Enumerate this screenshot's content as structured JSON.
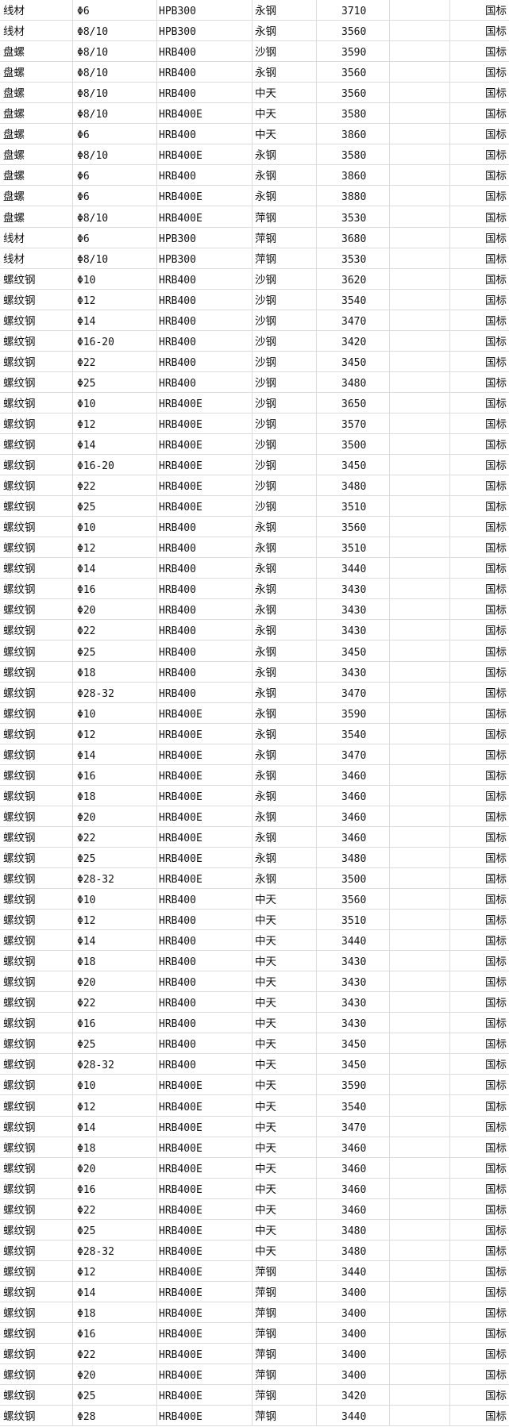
{
  "sheet": {
    "rows": [
      [
        "线材",
        "Φ6",
        "HPB300",
        "永钢",
        "3710",
        "",
        "国标"
      ],
      [
        "线材",
        "Φ8/10",
        "HPB300",
        "永钢",
        "3560",
        "",
        "国标"
      ],
      [
        "盘螺",
        "Φ8/10",
        "HRB400",
        "沙钢",
        "3590",
        "",
        "国标"
      ],
      [
        "盘螺",
        "Φ8/10",
        "HRB400",
        "永钢",
        "3560",
        "",
        "国标"
      ],
      [
        "盘螺",
        "Φ8/10",
        "HRB400",
        "中天",
        "3560",
        "",
        "国标"
      ],
      [
        "盘螺",
        "Φ8/10",
        "HRB400E",
        "中天",
        "3580",
        "",
        "国标"
      ],
      [
        "盘螺",
        "Φ6",
        "HRB400",
        "中天",
        "3860",
        "",
        "国标"
      ],
      [
        "盘螺",
        "Φ8/10",
        "HRB400E",
        "永钢",
        "3580",
        "",
        "国标"
      ],
      [
        "盘螺",
        "Φ6",
        "HRB400",
        "永钢",
        "3860",
        "",
        "国标"
      ],
      [
        "盘螺",
        "Φ6",
        "HRB400E",
        "永钢",
        "3880",
        "",
        "国标"
      ],
      [
        "盘螺",
        "Φ8/10",
        "HRB400E",
        "萍钢",
        "3530",
        "",
        "国标"
      ],
      [
        "线材",
        "Φ6",
        "HPB300",
        "萍钢",
        "3680",
        "",
        "国标"
      ],
      [
        "线材",
        "Φ8/10",
        "HPB300",
        "萍钢",
        "3530",
        "",
        "国标"
      ],
      [
        "螺纹钢",
        "Φ10",
        "HRB400",
        "沙钢",
        "3620",
        "",
        "国标"
      ],
      [
        "螺纹钢",
        "Φ12",
        "HRB400",
        "沙钢",
        "3540",
        "",
        "国标"
      ],
      [
        "螺纹钢",
        "Φ14",
        "HRB400",
        "沙钢",
        "3470",
        "",
        "国标"
      ],
      [
        "螺纹钢",
        "Φ16-20",
        "HRB400",
        "沙钢",
        "3420",
        "",
        "国标"
      ],
      [
        "螺纹钢",
        "Φ22",
        "HRB400",
        "沙钢",
        "3450",
        "",
        "国标"
      ],
      [
        "螺纹钢",
        "Φ25",
        "HRB400",
        "沙钢",
        "3480",
        "",
        "国标"
      ],
      [
        "螺纹钢",
        "Φ10",
        "HRB400E",
        "沙钢",
        "3650",
        "",
        "国标"
      ],
      [
        "螺纹钢",
        "Φ12",
        "HRB400E",
        "沙钢",
        "3570",
        "",
        "国标"
      ],
      [
        "螺纹钢",
        "Φ14",
        "HRB400E",
        "沙钢",
        "3500",
        "",
        "国标"
      ],
      [
        "螺纹钢",
        "Φ16-20",
        "HRB400E",
        "沙钢",
        "3450",
        "",
        "国标"
      ],
      [
        "螺纹钢",
        "Φ22",
        "HRB400E",
        "沙钢",
        "3480",
        "",
        "国标"
      ],
      [
        "螺纹钢",
        "Φ25",
        "HRB400E",
        "沙钢",
        "3510",
        "",
        "国标"
      ],
      [
        "螺纹钢",
        "Φ10",
        "HRB400",
        "永钢",
        "3560",
        "",
        "国标"
      ],
      [
        "螺纹钢",
        "Φ12",
        "HRB400",
        "永钢",
        "3510",
        "",
        "国标"
      ],
      [
        "螺纹钢",
        "Φ14",
        "HRB400",
        "永钢",
        "3440",
        "",
        "国标"
      ],
      [
        "螺纹钢",
        "Φ16",
        "HRB400",
        "永钢",
        "3430",
        "",
        "国标"
      ],
      [
        "螺纹钢",
        "Φ20",
        "HRB400",
        "永钢",
        "3430",
        "",
        "国标"
      ],
      [
        "螺纹钢",
        "Φ22",
        "HRB400",
        "永钢",
        "3430",
        "",
        "国标"
      ],
      [
        "螺纹钢",
        "Φ25",
        "HRB400",
        "永钢",
        "3450",
        "",
        "国标"
      ],
      [
        "螺纹钢",
        "Φ18",
        "HRB400",
        "永钢",
        "3430",
        "",
        "国标"
      ],
      [
        "螺纹钢",
        "Φ28-32",
        "HRB400",
        "永钢",
        "3470",
        "",
        "国标"
      ],
      [
        "螺纹钢",
        "Φ10",
        "HRB400E",
        "永钢",
        "3590",
        "",
        "国标"
      ],
      [
        "螺纹钢",
        "Φ12",
        "HRB400E",
        "永钢",
        "3540",
        "",
        "国标"
      ],
      [
        "螺纹钢",
        "Φ14",
        "HRB400E",
        "永钢",
        "3470",
        "",
        "国标"
      ],
      [
        "螺纹钢",
        "Φ16",
        "HRB400E",
        "永钢",
        "3460",
        "",
        "国标"
      ],
      [
        "螺纹钢",
        "Φ18",
        "HRB400E",
        "永钢",
        "3460",
        "",
        "国标"
      ],
      [
        "螺纹钢",
        "Φ20",
        "HRB400E",
        "永钢",
        "3460",
        "",
        "国标"
      ],
      [
        "螺纹钢",
        "Φ22",
        "HRB400E",
        "永钢",
        "3460",
        "",
        "国标"
      ],
      [
        "螺纹钢",
        "Φ25",
        "HRB400E",
        "永钢",
        "3480",
        "",
        "国标"
      ],
      [
        "螺纹钢",
        "Φ28-32",
        "HRB400E",
        "永钢",
        "3500",
        "",
        "国标"
      ],
      [
        "螺纹钢",
        "Φ10",
        "HRB400",
        "中天",
        "3560",
        "",
        "国标"
      ],
      [
        "螺纹钢",
        "Φ12",
        "HRB400",
        "中天",
        "3510",
        "",
        "国标"
      ],
      [
        "螺纹钢",
        "Φ14",
        "HRB400",
        "中天",
        "3440",
        "",
        "国标"
      ],
      [
        "螺纹钢",
        "Φ18",
        "HRB400",
        "中天",
        "3430",
        "",
        "国标"
      ],
      [
        "螺纹钢",
        "Φ20",
        "HRB400",
        "中天",
        "3430",
        "",
        "国标"
      ],
      [
        "螺纹钢",
        "Φ22",
        "HRB400",
        "中天",
        "3430",
        "",
        "国标"
      ],
      [
        "螺纹钢",
        "Φ16",
        "HRB400",
        "中天",
        "3430",
        "",
        "国标"
      ],
      [
        "螺纹钢",
        "Φ25",
        "HRB400",
        "中天",
        "3450",
        "",
        "国标"
      ],
      [
        "螺纹钢",
        "Φ28-32",
        "HRB400",
        "中天",
        "3450",
        "",
        "国标"
      ],
      [
        "螺纹钢",
        "Φ10",
        "HRB400E",
        "中天",
        "3590",
        "",
        "国标"
      ],
      [
        "螺纹钢",
        "Φ12",
        "HRB400E",
        "中天",
        "3540",
        "",
        "国标"
      ],
      [
        "螺纹钢",
        "Φ14",
        "HRB400E",
        "中天",
        "3470",
        "",
        "国标"
      ],
      [
        "螺纹钢",
        "Φ18",
        "HRB400E",
        "中天",
        "3460",
        "",
        "国标"
      ],
      [
        "螺纹钢",
        "Φ20",
        "HRB400E",
        "中天",
        "3460",
        "",
        "国标"
      ],
      [
        "螺纹钢",
        "Φ16",
        "HRB400E",
        "中天",
        "3460",
        "",
        "国标"
      ],
      [
        "螺纹钢",
        "Φ22",
        "HRB400E",
        "中天",
        "3460",
        "",
        "国标"
      ],
      [
        "螺纹钢",
        "Φ25",
        "HRB400E",
        "中天",
        "3480",
        "",
        "国标"
      ],
      [
        "螺纹钢",
        "Φ28-32",
        "HRB400E",
        "中天",
        "3480",
        "",
        "国标"
      ],
      [
        "螺纹钢",
        "Φ12",
        "HRB400E",
        "萍钢",
        "3440",
        "",
        "国标"
      ],
      [
        "螺纹钢",
        "Φ14",
        "HRB400E",
        "萍钢",
        "3400",
        "",
        "国标"
      ],
      [
        "螺纹钢",
        "Φ18",
        "HRB400E",
        "萍钢",
        "3400",
        "",
        "国标"
      ],
      [
        "螺纹钢",
        "Φ16",
        "HRB400E",
        "萍钢",
        "3400",
        "",
        "国标"
      ],
      [
        "螺纹钢",
        "Φ22",
        "HRB400E",
        "萍钢",
        "3400",
        "",
        "国标"
      ],
      [
        "螺纹钢",
        "Φ20",
        "HRB400E",
        "萍钢",
        "3400",
        "",
        "国标"
      ],
      [
        "螺纹钢",
        "Φ25",
        "HRB400E",
        "萍钢",
        "3420",
        "",
        "国标"
      ],
      [
        "螺纹钢",
        "Φ28",
        "HRB400E",
        "萍钢",
        "3440",
        "",
        "国标"
      ]
    ]
  }
}
